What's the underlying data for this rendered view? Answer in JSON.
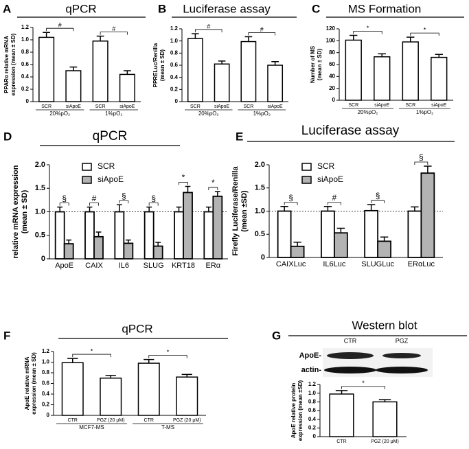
{
  "chart_data": [
    {
      "type": "bar",
      "label": "A",
      "title": "qPCR",
      "ylabel": [
        "PPARα relative mRNA",
        "expression (mean ± SD)"
      ],
      "categories": [
        "SCR",
        "siApoE",
        "SCR",
        "siApoE"
      ],
      "groups": [
        "20%pO₂",
        "1%pO₂"
      ],
      "values": [
        1.04,
        0.5,
        0.98,
        0.44
      ],
      "errors": [
        0.08,
        0.06,
        0.08,
        0.06
      ],
      "significance": [
        "#",
        "#"
      ],
      "color": "#ffffff",
      "ylim": [
        0,
        1.2
      ],
      "yticks": [
        0,
        0.2,
        0.4,
        0.6,
        0.8,
        {
          "value": 1,
          "label": "1.0"
        },
        1.2
      ]
    },
    {
      "type": "bar",
      "label": "B",
      "title": "Luciferase assay",
      "ylabel": [
        "PPRELuc/Renilla",
        "(mean ± SD)"
      ],
      "categories": [
        "SCR",
        "siApoE",
        "SCR",
        "siApoE"
      ],
      "groups": [
        "20%pO₂",
        "1%pO₂"
      ],
      "values": [
        1.04,
        0.62,
        0.99,
        0.6
      ],
      "errors": [
        0.08,
        0.05,
        0.08,
        0.06
      ],
      "significance": [
        "#",
        "#"
      ],
      "color": "#ffffff",
      "ylim": [
        0,
        1.2
      ],
      "yticks": [
        0,
        0.2,
        0.4,
        0.6,
        0.8,
        {
          "value": 1,
          "label": "1.0"
        },
        1.2
      ]
    },
    {
      "type": "bar",
      "label": "C",
      "title": "MS Formation",
      "ylabel": [
        "Number of MS",
        "(mean ± SD)"
      ],
      "categories": [
        "SCR",
        "siApoE",
        "SCR",
        "siApoE"
      ],
      "groups": [
        "20%pO₂",
        "1%pO₂"
      ],
      "values": [
        101,
        73,
        98,
        72
      ],
      "errors": [
        8,
        5,
        8,
        5
      ],
      "significance": [
        "*",
        "*"
      ],
      "color": "#ffffff",
      "ylim": [
        0,
        120
      ],
      "yticks": [
        0,
        20,
        40,
        60,
        80,
        100,
        120
      ]
    },
    {
      "type": "groupedbar",
      "label": "D",
      "title": "qPCR",
      "ylabel": [
        "relative mRNA expression",
        "(mean ± SD)"
      ],
      "categories": [
        "ApoE",
        "CAIX",
        "IL6",
        "SLUG",
        "KRT18",
        "ERα"
      ],
      "series": [
        {
          "name": "SCR",
          "color": "#ffffff",
          "values": [
            1,
            1,
            1,
            1,
            1,
            1
          ],
          "errors": [
            0.1,
            0.1,
            0.15,
            0.1,
            0.1,
            0.1
          ]
        },
        {
          "name": "siApoE",
          "color": "#b3b3b3",
          "values": [
            0.32,
            0.47,
            0.33,
            0.27,
            1.41,
            1.33
          ],
          "errors": [
            0.08,
            0.1,
            0.07,
            0.08,
            0.13,
            0.1
          ]
        }
      ],
      "significance": [
        "§",
        "#",
        "§",
        "§",
        "*",
        "*"
      ],
      "refline": 1,
      "ylim": [
        0,
        2
      ],
      "yticks": [
        0,
        0.5,
        {
          "value": 1,
          "label": "1.0"
        },
        1.5,
        {
          "value": 2,
          "label": "2.0"
        }
      ]
    },
    {
      "type": "groupedbar",
      "label": "E",
      "title": "Luciferase assay",
      "ylabel": [
        "Firefly Luciferase/Renilla",
        "(mean ±SD)"
      ],
      "categories": [
        "CAIXLuc",
        "IL6Luc",
        "SLUGLuc",
        "ERαLuc"
      ],
      "series": [
        {
          "name": "SCR",
          "color": "#ffffff",
          "values": [
            1,
            1,
            1.01,
            1
          ],
          "errors": [
            0.1,
            0.1,
            0.13,
            0.09
          ]
        },
        {
          "name": "siApoE",
          "color": "#b3b3b3",
          "values": [
            0.24,
            0.53,
            0.35,
            1.82
          ],
          "errors": [
            0.09,
            0.1,
            0.09,
            0.15
          ]
        }
      ],
      "significance": [
        "§",
        "#",
        "§",
        "§"
      ],
      "refline": 1,
      "ylim": [
        0,
        2
      ],
      "yticks": [
        0,
        0.5,
        {
          "value": 1,
          "label": "1.0"
        },
        1.5,
        {
          "value": 2,
          "label": "2.0"
        }
      ]
    },
    {
      "type": "bar",
      "label": "F",
      "title": "qPCR",
      "ylabel": [
        "ApoE relative mRNA",
        "expression (mean ± SD)"
      ],
      "categories": [
        "CTR",
        "PGZ (20 μM)",
        "CTR",
        "PGZ (20 μM)"
      ],
      "groups": [
        "MCF7-MS",
        "T-MS"
      ],
      "values": [
        0.99,
        0.7,
        0.98,
        0.72
      ],
      "errors": [
        0.08,
        0.05,
        0.07,
        0.05
      ],
      "significance": [
        "*",
        "*"
      ],
      "color": "#ffffff",
      "ylim": [
        0,
        1.2
      ],
      "yticks": [
        0,
        0.2,
        0.4,
        0.6,
        0.8,
        {
          "value": 1,
          "label": "1.0"
        },
        1.2
      ]
    },
    {
      "type": "bar",
      "label": "G",
      "title": "Western blot",
      "ylabel": [
        "ApoE relative protein",
        "expression (mean ±SD)"
      ],
      "blot": {
        "columns": [
          "CTR",
          "PGZ"
        ],
        "rows": [
          "ApoE-",
          "actin-"
        ]
      },
      "categories": [
        "CTR",
        "PGZ (20 μM)"
      ],
      "values": [
        0.98,
        0.8
      ],
      "errors": [
        0.08,
        0.05
      ],
      "significance": [
        "*"
      ],
      "color": "#ffffff",
      "ylim": [
        0,
        1.2
      ],
      "yticks": [
        0,
        0.2,
        0.4,
        0.6,
        0.8,
        {
          "value": 1,
          "label": "1.0"
        },
        1.2
      ]
    }
  ]
}
